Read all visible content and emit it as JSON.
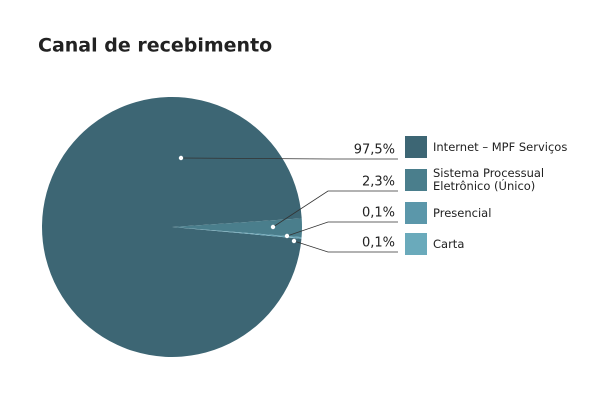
{
  "chart_data": {
    "type": "pie",
    "title": "Canal de recebimento",
    "categories": [
      "Internet – MPF Serviços",
      "Sistema Processual Eletrônico (Único)",
      "Presencial",
      "Carta"
    ],
    "values": [
      97.5,
      2.3,
      0.1,
      0.1
    ],
    "value_labels": [
      "97,5%",
      "2,3%",
      "0,1%",
      "0,1%"
    ],
    "colors": [
      "#3d6674",
      "#4a7e8c",
      "#5b97aa",
      "#6aaabb"
    ]
  }
}
